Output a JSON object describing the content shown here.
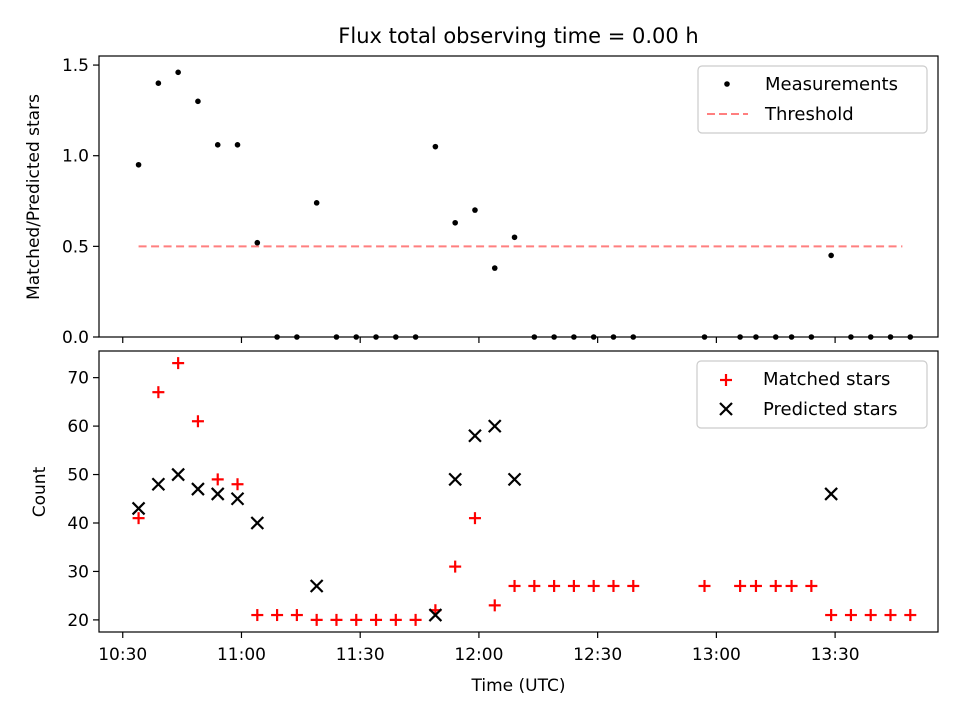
{
  "title": "Flux total observing time = 0.00 h",
  "chart_data": [
    {
      "type": "scatter",
      "ylabel": "Matched/Predicted stars",
      "xlim": [
        "10:24",
        "13:56"
      ],
      "ylim": [
        0,
        1.55
      ],
      "yticks": [
        "0.0",
        "0.5",
        "1.0",
        "1.5"
      ],
      "threshold": {
        "name": "Threshold",
        "y": 0.5,
        "x_range": [
          "10:34",
          "13:47"
        ],
        "color": "#ff7f7f"
      },
      "series": [
        {
          "name": "Measurements",
          "color": "#000000",
          "points": [
            {
              "x": "10:34",
              "y": 0.95
            },
            {
              "x": "10:39",
              "y": 1.4
            },
            {
              "x": "10:44",
              "y": 1.46
            },
            {
              "x": "10:49",
              "y": 1.3
            },
            {
              "x": "10:54",
              "y": 1.06
            },
            {
              "x": "10:59",
              "y": 1.06
            },
            {
              "x": "11:04",
              "y": 0.52
            },
            {
              "x": "11:09",
              "y": 0.0
            },
            {
              "x": "11:14",
              "y": 0.0
            },
            {
              "x": "11:19",
              "y": 0.74
            },
            {
              "x": "11:24",
              "y": 0.0
            },
            {
              "x": "11:29",
              "y": 0.0
            },
            {
              "x": "11:34",
              "y": 0.0
            },
            {
              "x": "11:39",
              "y": 0.0
            },
            {
              "x": "11:44",
              "y": 0.0
            },
            {
              "x": "11:49",
              "y": 1.05
            },
            {
              "x": "11:54",
              "y": 0.63
            },
            {
              "x": "11:59",
              "y": 0.7
            },
            {
              "x": "12:04",
              "y": 0.38
            },
            {
              "x": "12:09",
              "y": 0.55
            },
            {
              "x": "12:14",
              "y": 0.0
            },
            {
              "x": "12:19",
              "y": 0.0
            },
            {
              "x": "12:24",
              "y": 0.0
            },
            {
              "x": "12:29",
              "y": 0.0
            },
            {
              "x": "12:34",
              "y": 0.0
            },
            {
              "x": "12:39",
              "y": 0.0
            },
            {
              "x": "12:57",
              "y": 0.0
            },
            {
              "x": "13:06",
              "y": 0.0
            },
            {
              "x": "13:10",
              "y": 0.0
            },
            {
              "x": "13:15",
              "y": 0.0
            },
            {
              "x": "13:19",
              "y": 0.0
            },
            {
              "x": "13:24",
              "y": 0.0
            },
            {
              "x": "13:29",
              "y": 0.45
            },
            {
              "x": "13:34",
              "y": 0.0
            },
            {
              "x": "13:39",
              "y": 0.0
            },
            {
              "x": "13:44",
              "y": 0.0
            },
            {
              "x": "13:49",
              "y": 0.0
            }
          ]
        }
      ],
      "legend": {
        "location": "upper right",
        "entries": [
          "Measurements",
          "Threshold"
        ]
      }
    },
    {
      "type": "scatter",
      "xlabel": "Time (UTC)",
      "ylabel": "Count",
      "xlim": [
        "10:24",
        "13:56"
      ],
      "ylim": [
        17.5,
        75.5
      ],
      "xticks": [
        "10:30",
        "11:00",
        "11:30",
        "12:00",
        "12:30",
        "13:00",
        "13:30"
      ],
      "yticks": [
        "20",
        "30",
        "40",
        "50",
        "60",
        "70"
      ],
      "series": [
        {
          "name": "Matched stars",
          "marker": "+",
          "color": "#ff0000",
          "points": [
            {
              "x": "10:34",
              "y": 41
            },
            {
              "x": "10:39",
              "y": 67
            },
            {
              "x": "10:44",
              "y": 73
            },
            {
              "x": "10:49",
              "y": 61
            },
            {
              "x": "10:54",
              "y": 49
            },
            {
              "x": "10:59",
              "y": 48
            },
            {
              "x": "11:04",
              "y": 21
            },
            {
              "x": "11:09",
              "y": 21
            },
            {
              "x": "11:14",
              "y": 21
            },
            {
              "x": "11:19",
              "y": 20
            },
            {
              "x": "11:24",
              "y": 20
            },
            {
              "x": "11:29",
              "y": 20
            },
            {
              "x": "11:34",
              "y": 20
            },
            {
              "x": "11:39",
              "y": 20
            },
            {
              "x": "11:44",
              "y": 20
            },
            {
              "x": "11:49",
              "y": 22
            },
            {
              "x": "11:54",
              "y": 31
            },
            {
              "x": "11:59",
              "y": 41
            },
            {
              "x": "12:04",
              "y": 23
            },
            {
              "x": "12:09",
              "y": 27
            },
            {
              "x": "12:14",
              "y": 27
            },
            {
              "x": "12:19",
              "y": 27
            },
            {
              "x": "12:24",
              "y": 27
            },
            {
              "x": "12:29",
              "y": 27
            },
            {
              "x": "12:34",
              "y": 27
            },
            {
              "x": "12:39",
              "y": 27
            },
            {
              "x": "12:57",
              "y": 27
            },
            {
              "x": "13:06",
              "y": 27
            },
            {
              "x": "13:10",
              "y": 27
            },
            {
              "x": "13:15",
              "y": 27
            },
            {
              "x": "13:19",
              "y": 27
            },
            {
              "x": "13:24",
              "y": 27
            },
            {
              "x": "13:29",
              "y": 21
            },
            {
              "x": "13:34",
              "y": 21
            },
            {
              "x": "13:39",
              "y": 21
            },
            {
              "x": "13:44",
              "y": 21
            },
            {
              "x": "13:49",
              "y": 21
            }
          ]
        },
        {
          "name": "Predicted stars",
          "marker": "x",
          "color": "#000000",
          "points": [
            {
              "x": "10:34",
              "y": 43
            },
            {
              "x": "10:39",
              "y": 48
            },
            {
              "x": "10:44",
              "y": 50
            },
            {
              "x": "10:49",
              "y": 47
            },
            {
              "x": "10:54",
              "y": 46
            },
            {
              "x": "10:59",
              "y": 45
            },
            {
              "x": "11:04",
              "y": 40
            },
            {
              "x": "11:19",
              "y": 27
            },
            {
              "x": "11:49",
              "y": 21
            },
            {
              "x": "11:54",
              "y": 49
            },
            {
              "x": "11:59",
              "y": 58
            },
            {
              "x": "12:04",
              "y": 60
            },
            {
              "x": "12:09",
              "y": 49
            },
            {
              "x": "13:29",
              "y": 46
            }
          ]
        }
      ],
      "legend": {
        "location": "upper right",
        "entries": [
          "Matched stars",
          "Predicted stars"
        ]
      }
    }
  ]
}
